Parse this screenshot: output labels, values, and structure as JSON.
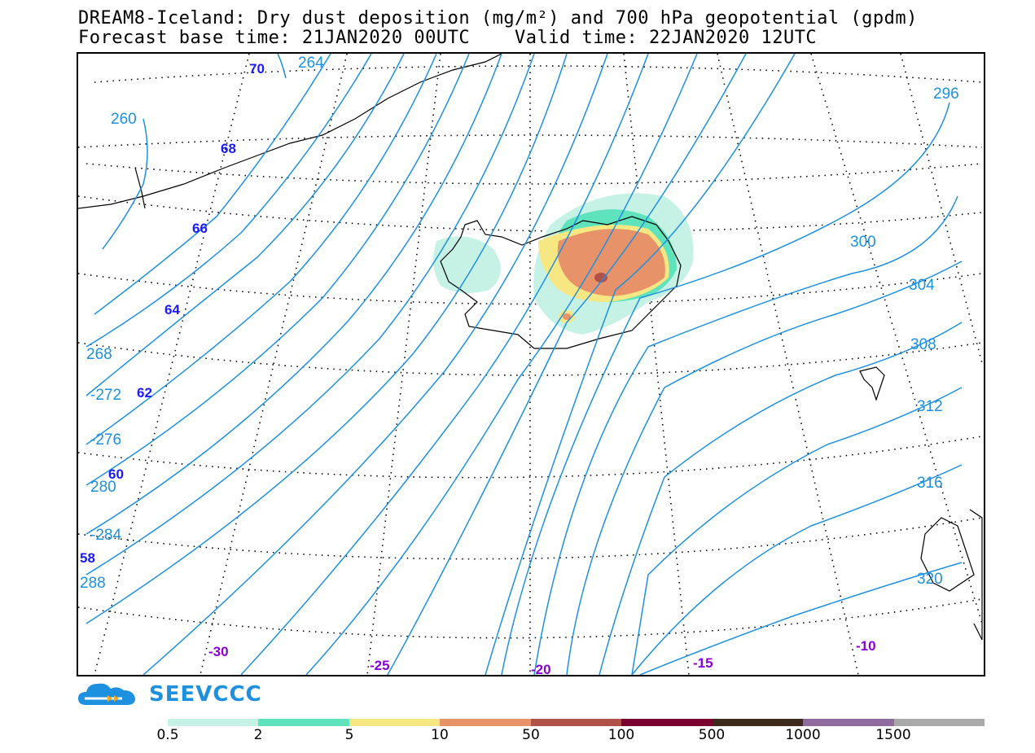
{
  "title": {
    "line1": "DREAM8-Iceland: Dry dust deposition (mg/m²) and 700 hPa geopotential (gpdm)",
    "line2": "Forecast base time: 21JAN2020 00UTC    Valid time: 22JAN2020 12UTC"
  },
  "logo": {
    "text": "SEEVCCC",
    "icon": "cloud-logo-icon"
  },
  "map": {
    "latitude_labels": [
      "70",
      "68",
      "66",
      "64",
      "62",
      "60",
      "58"
    ],
    "longitude_labels": [
      "-30",
      "-25",
      "-20",
      "-15",
      "-10"
    ],
    "contour_labels": [
      "264",
      "260",
      "268",
      "-272",
      "-276",
      "280",
      "-284",
      "288",
      "296",
      "300",
      "304",
      "308",
      "312",
      "316",
      "320"
    ],
    "colors": {
      "contour": "#1e90e0",
      "lat_label": "#1a1aff",
      "lon_label": "#8a00d4",
      "grid": "#000000"
    }
  },
  "legend": {
    "labels": [
      "0.5",
      "2",
      "5",
      "10",
      "50",
      "100",
      "500",
      "1000",
      "1500"
    ],
    "colors": [
      "#c6f2e6",
      "#5fe3bd",
      "#f6e783",
      "#e8926a",
      "#b0514a",
      "#7a0030",
      "#3d2a1a",
      "#8e6a9e",
      "#a9a9a9"
    ]
  }
}
